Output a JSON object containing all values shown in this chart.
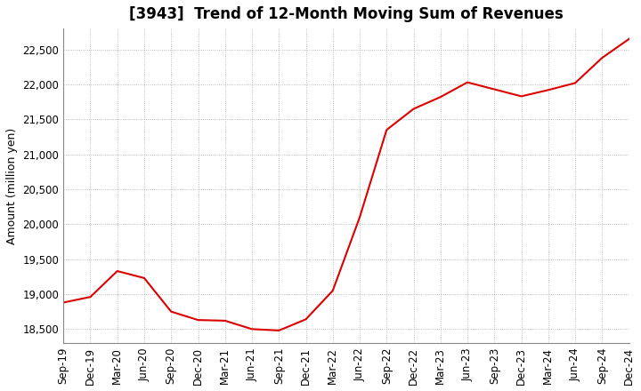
{
  "title": "[3943]  Trend of 12-Month Moving Sum of Revenues",
  "ylabel": "Amount (million yen)",
  "line_color": "#dd0000",
  "background_color": "#ffffff",
  "grid_color": "#aaaaaa",
  "x_labels": [
    "Sep-19",
    "Dec-19",
    "Mar-20",
    "Jun-20",
    "Sep-20",
    "Dec-20",
    "Mar-21",
    "Jun-21",
    "Sep-21",
    "Dec-21",
    "Mar-22",
    "Jun-22",
    "Sep-22",
    "Dec-22",
    "Mar-23",
    "Jun-23",
    "Sep-23",
    "Dec-23",
    "Mar-24",
    "Jun-24",
    "Sep-24",
    "Dec-24"
  ],
  "values": [
    18880,
    18960,
    19330,
    19230,
    18750,
    18630,
    18620,
    18500,
    18480,
    18640,
    19050,
    20100,
    21350,
    21650,
    21820,
    22030,
    21930,
    21830,
    21920,
    22020,
    22380,
    22650
  ],
  "ylim": [
    18300,
    22800
  ],
  "yticks": [
    18500,
    19000,
    19500,
    20000,
    20500,
    21000,
    21500,
    22000,
    22500
  ],
  "title_fontsize": 12,
  "label_fontsize": 9,
  "tick_fontsize": 8.5
}
